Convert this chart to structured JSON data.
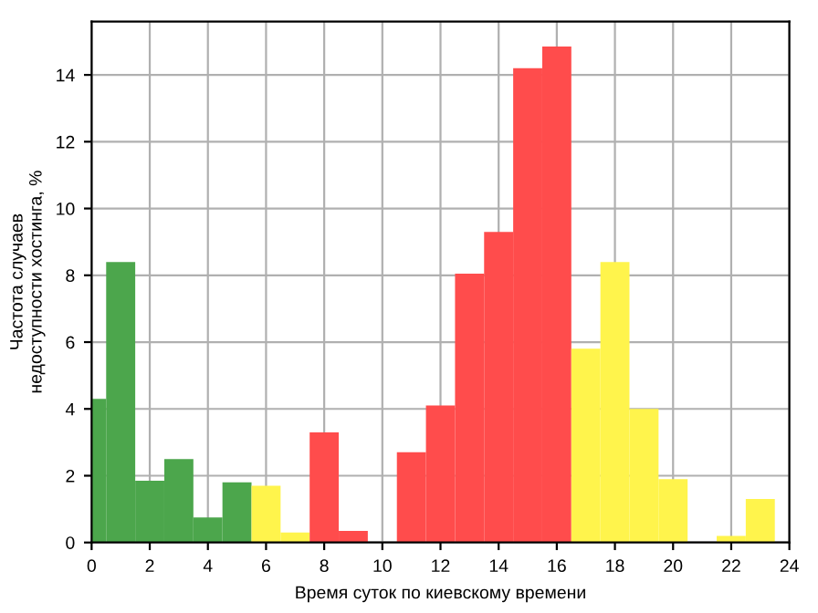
{
  "chart_data": {
    "type": "histogram",
    "xlabel": "Время суток по киевскому времени",
    "ylabel": "Частота случаев\nнедоступности хостинга, %",
    "bins": [
      -0.5,
      0.5,
      1.5,
      2.5,
      3.5,
      4.5,
      5.5,
      6.5,
      7.5,
      8.5,
      9.5,
      10.5,
      11.5,
      12.5,
      13.5,
      14.5,
      15.5,
      16.5,
      17.5,
      18.5,
      19.5,
      20.5,
      21.5,
      22.5,
      23.5
    ],
    "values": [
      4.3,
      8.4,
      1.85,
      2.5,
      0.75,
      1.8,
      1.7,
      0.3,
      3.3,
      0.35,
      0,
      2.7,
      4.1,
      8.05,
      9.3,
      14.2,
      14.85,
      5.8,
      8.4,
      4.0,
      1.9,
      0,
      0.2,
      1.3
    ],
    "colors": [
      "#4ca64c",
      "#4ca64c",
      "#4ca64c",
      "#4ca64c",
      "#4ca64c",
      "#4ca64c",
      "#fff44c",
      "#fff44c",
      "#ff4c4c",
      "#ff4c4c",
      "#ff4c4c",
      "#ff4c4c",
      "#ff4c4c",
      "#ff4c4c",
      "#ff4c4c",
      "#ff4c4c",
      "#ff4c4c",
      "#fff44c",
      "#fff44c",
      "#fff44c",
      "#fff44c",
      "#fff44c",
      "#fff44c",
      "#fff44c"
    ],
    "xlim": [
      0,
      24
    ],
    "xticks": [
      0,
      2,
      4,
      6,
      8,
      10,
      12,
      14,
      16,
      18,
      20,
      22,
      24
    ],
    "ylim": [
      0,
      15.6
    ],
    "yticks": [
      0,
      2,
      4,
      6,
      8,
      10,
      12,
      14
    ],
    "grid": true
  }
}
